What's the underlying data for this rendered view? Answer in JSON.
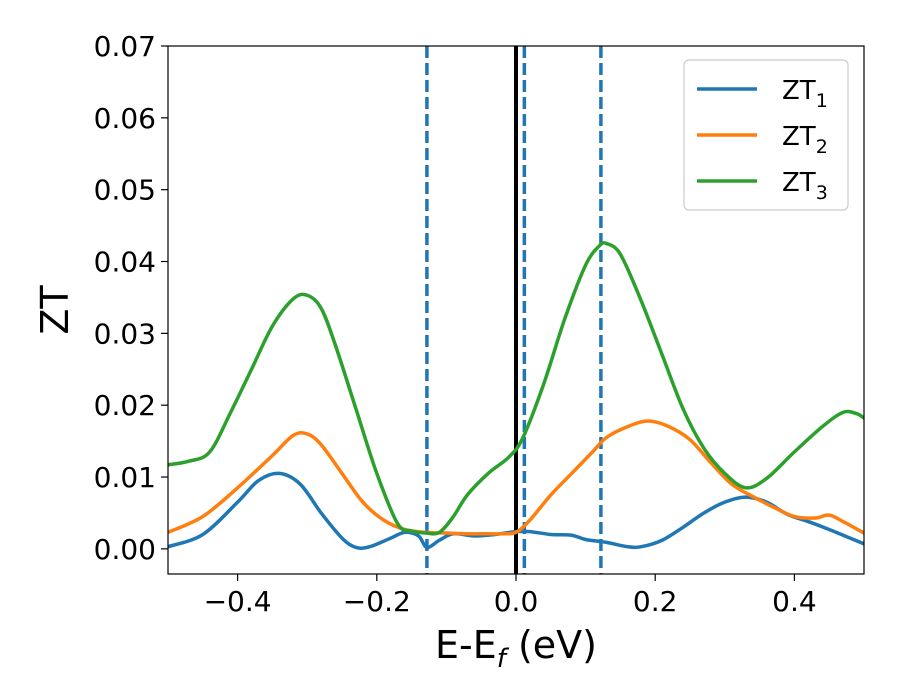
{
  "chart_data": {
    "type": "line",
    "xlabel": {
      "main": "E-E",
      "subscript": "f",
      "suffix": " (eV)"
    },
    "ylabel": "ZT",
    "xlim": [
      -0.5,
      0.5
    ],
    "ylim": [
      -0.0035,
      0.07
    ],
    "xticks": [
      -0.4,
      -0.2,
      0.0,
      0.2,
      0.4
    ],
    "xtick_labels": [
      "−0.4",
      "−0.2",
      "0.0",
      "0.2",
      "0.4"
    ],
    "yticks": [
      0.0,
      0.01,
      0.02,
      0.03,
      0.04,
      0.05,
      0.06,
      0.07
    ],
    "ytick_labels": [
      "0.00",
      "0.01",
      "0.02",
      "0.03",
      "0.04",
      "0.05",
      "0.06",
      "0.07"
    ],
    "grid": false,
    "legend_position": "top-right",
    "series": [
      {
        "name": "ZT",
        "subscript": "1",
        "color": "#1f77b4",
        "x": [
          -0.5,
          -0.45,
          -0.4,
          -0.37,
          -0.34,
          -0.31,
          -0.28,
          -0.25,
          -0.23,
          -0.21,
          -0.18,
          -0.16,
          -0.14,
          -0.128,
          -0.11,
          -0.09,
          -0.06,
          -0.03,
          0.0,
          0.02,
          0.05,
          0.08,
          0.1,
          0.13,
          0.16,
          0.18,
          0.21,
          0.24,
          0.27,
          0.3,
          0.33,
          0.36,
          0.39,
          0.42,
          0.45,
          0.48,
          0.5
        ],
        "y": [
          0.0003,
          0.002,
          0.0065,
          0.0095,
          0.0105,
          0.009,
          0.005,
          0.0015,
          0.0002,
          0.0003,
          0.0015,
          0.0023,
          0.0018,
          0.0002,
          0.0012,
          0.0021,
          0.0018,
          0.002,
          0.0024,
          0.0024,
          0.002,
          0.0019,
          0.0013,
          0.0009,
          0.0003,
          0.0003,
          0.0012,
          0.003,
          0.005,
          0.0065,
          0.0072,
          0.0065,
          0.0048,
          0.0038,
          0.0027,
          0.0015,
          0.0007
        ]
      },
      {
        "name": "ZT",
        "subscript": "2",
        "color": "#ff7f0e",
        "x": [
          -0.5,
          -0.45,
          -0.4,
          -0.35,
          -0.32,
          -0.3,
          -0.28,
          -0.25,
          -0.22,
          -0.19,
          -0.16,
          -0.13,
          -0.1,
          -0.07,
          -0.04,
          -0.02,
          0.0,
          0.02,
          0.05,
          0.08,
          0.11,
          0.13,
          0.16,
          0.19,
          0.22,
          0.25,
          0.28,
          0.31,
          0.34,
          0.37,
          0.4,
          0.43,
          0.45,
          0.47,
          0.5
        ],
        "y": [
          0.0023,
          0.0045,
          0.0085,
          0.013,
          0.0158,
          0.016,
          0.0145,
          0.0105,
          0.0065,
          0.004,
          0.0027,
          0.0023,
          0.0022,
          0.0021,
          0.0021,
          0.0021,
          0.0023,
          0.004,
          0.0075,
          0.0105,
          0.0135,
          0.0155,
          0.017,
          0.0178,
          0.017,
          0.0152,
          0.012,
          0.009,
          0.0073,
          0.0058,
          0.0045,
          0.0043,
          0.0047,
          0.0038,
          0.0022
        ]
      },
      {
        "name": "ZT",
        "subscript": "3",
        "color": "#2ca02c",
        "x": [
          -0.5,
          -0.47,
          -0.44,
          -0.41,
          -0.38,
          -0.35,
          -0.32,
          -0.3,
          -0.28,
          -0.26,
          -0.23,
          -0.2,
          -0.17,
          -0.15,
          -0.13,
          -0.11,
          -0.09,
          -0.07,
          -0.04,
          -0.01,
          0.01,
          0.04,
          0.07,
          0.1,
          0.12,
          0.13,
          0.15,
          0.18,
          0.21,
          0.24,
          0.27,
          0.3,
          0.33,
          0.36,
          0.4,
          0.44,
          0.47,
          0.49,
          0.5
        ],
        "y": [
          0.0117,
          0.0122,
          0.0135,
          0.019,
          0.025,
          0.031,
          0.0348,
          0.0353,
          0.0335,
          0.0285,
          0.0195,
          0.0105,
          0.0035,
          0.0025,
          0.0022,
          0.0023,
          0.0045,
          0.0075,
          0.0105,
          0.0128,
          0.0155,
          0.023,
          0.032,
          0.0395,
          0.0422,
          0.0425,
          0.041,
          0.0345,
          0.027,
          0.0195,
          0.014,
          0.0105,
          0.0085,
          0.0098,
          0.0135,
          0.017,
          0.019,
          0.0188,
          0.0182
        ]
      }
    ],
    "vlines": [
      {
        "x": -0.128,
        "style": "dashed",
        "color": "#1f77b4"
      },
      {
        "x": 0.0,
        "style": "solid",
        "color": "#000000"
      },
      {
        "x": 0.012,
        "style": "dashed",
        "color": "#1f77b4"
      },
      {
        "x": 0.122,
        "style": "dashed",
        "color": "#1f77b4"
      }
    ]
  }
}
